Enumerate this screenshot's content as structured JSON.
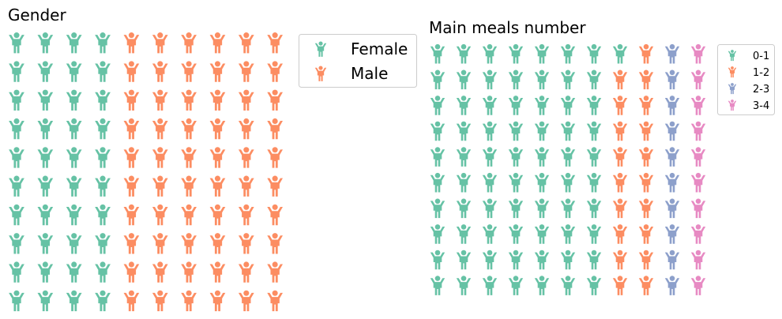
{
  "chart_data": [
    {
      "type": "waffle",
      "title": "Gender",
      "rows": 10,
      "columns": 10,
      "fill_order": "column-major, left to right, top to bottom",
      "icon": "child-arms-raised-icon",
      "categories": [
        "Female",
        "Male"
      ],
      "values": [
        40,
        60
      ],
      "colors": [
        "#66c2a5",
        "#fc8d62"
      ],
      "legend": {
        "placement": "right, outside top"
      },
      "grid": false
    },
    {
      "type": "waffle",
      "title": "Main meals number",
      "rows": 10,
      "columns": 11,
      "fill_order": "column-major, left to right, top to bottom",
      "icon": "child-arms-raised-icon",
      "categories": [
        "0-1",
        "1-2",
        "2-3",
        "3-4"
      ],
      "values": [
        71,
        19,
        10,
        10
      ],
      "colors": [
        "#66c2a5",
        "#fc8d62",
        "#8da0cb",
        "#e78ac3"
      ],
      "legend": {
        "placement": "right, outside top"
      },
      "grid": false
    }
  ]
}
